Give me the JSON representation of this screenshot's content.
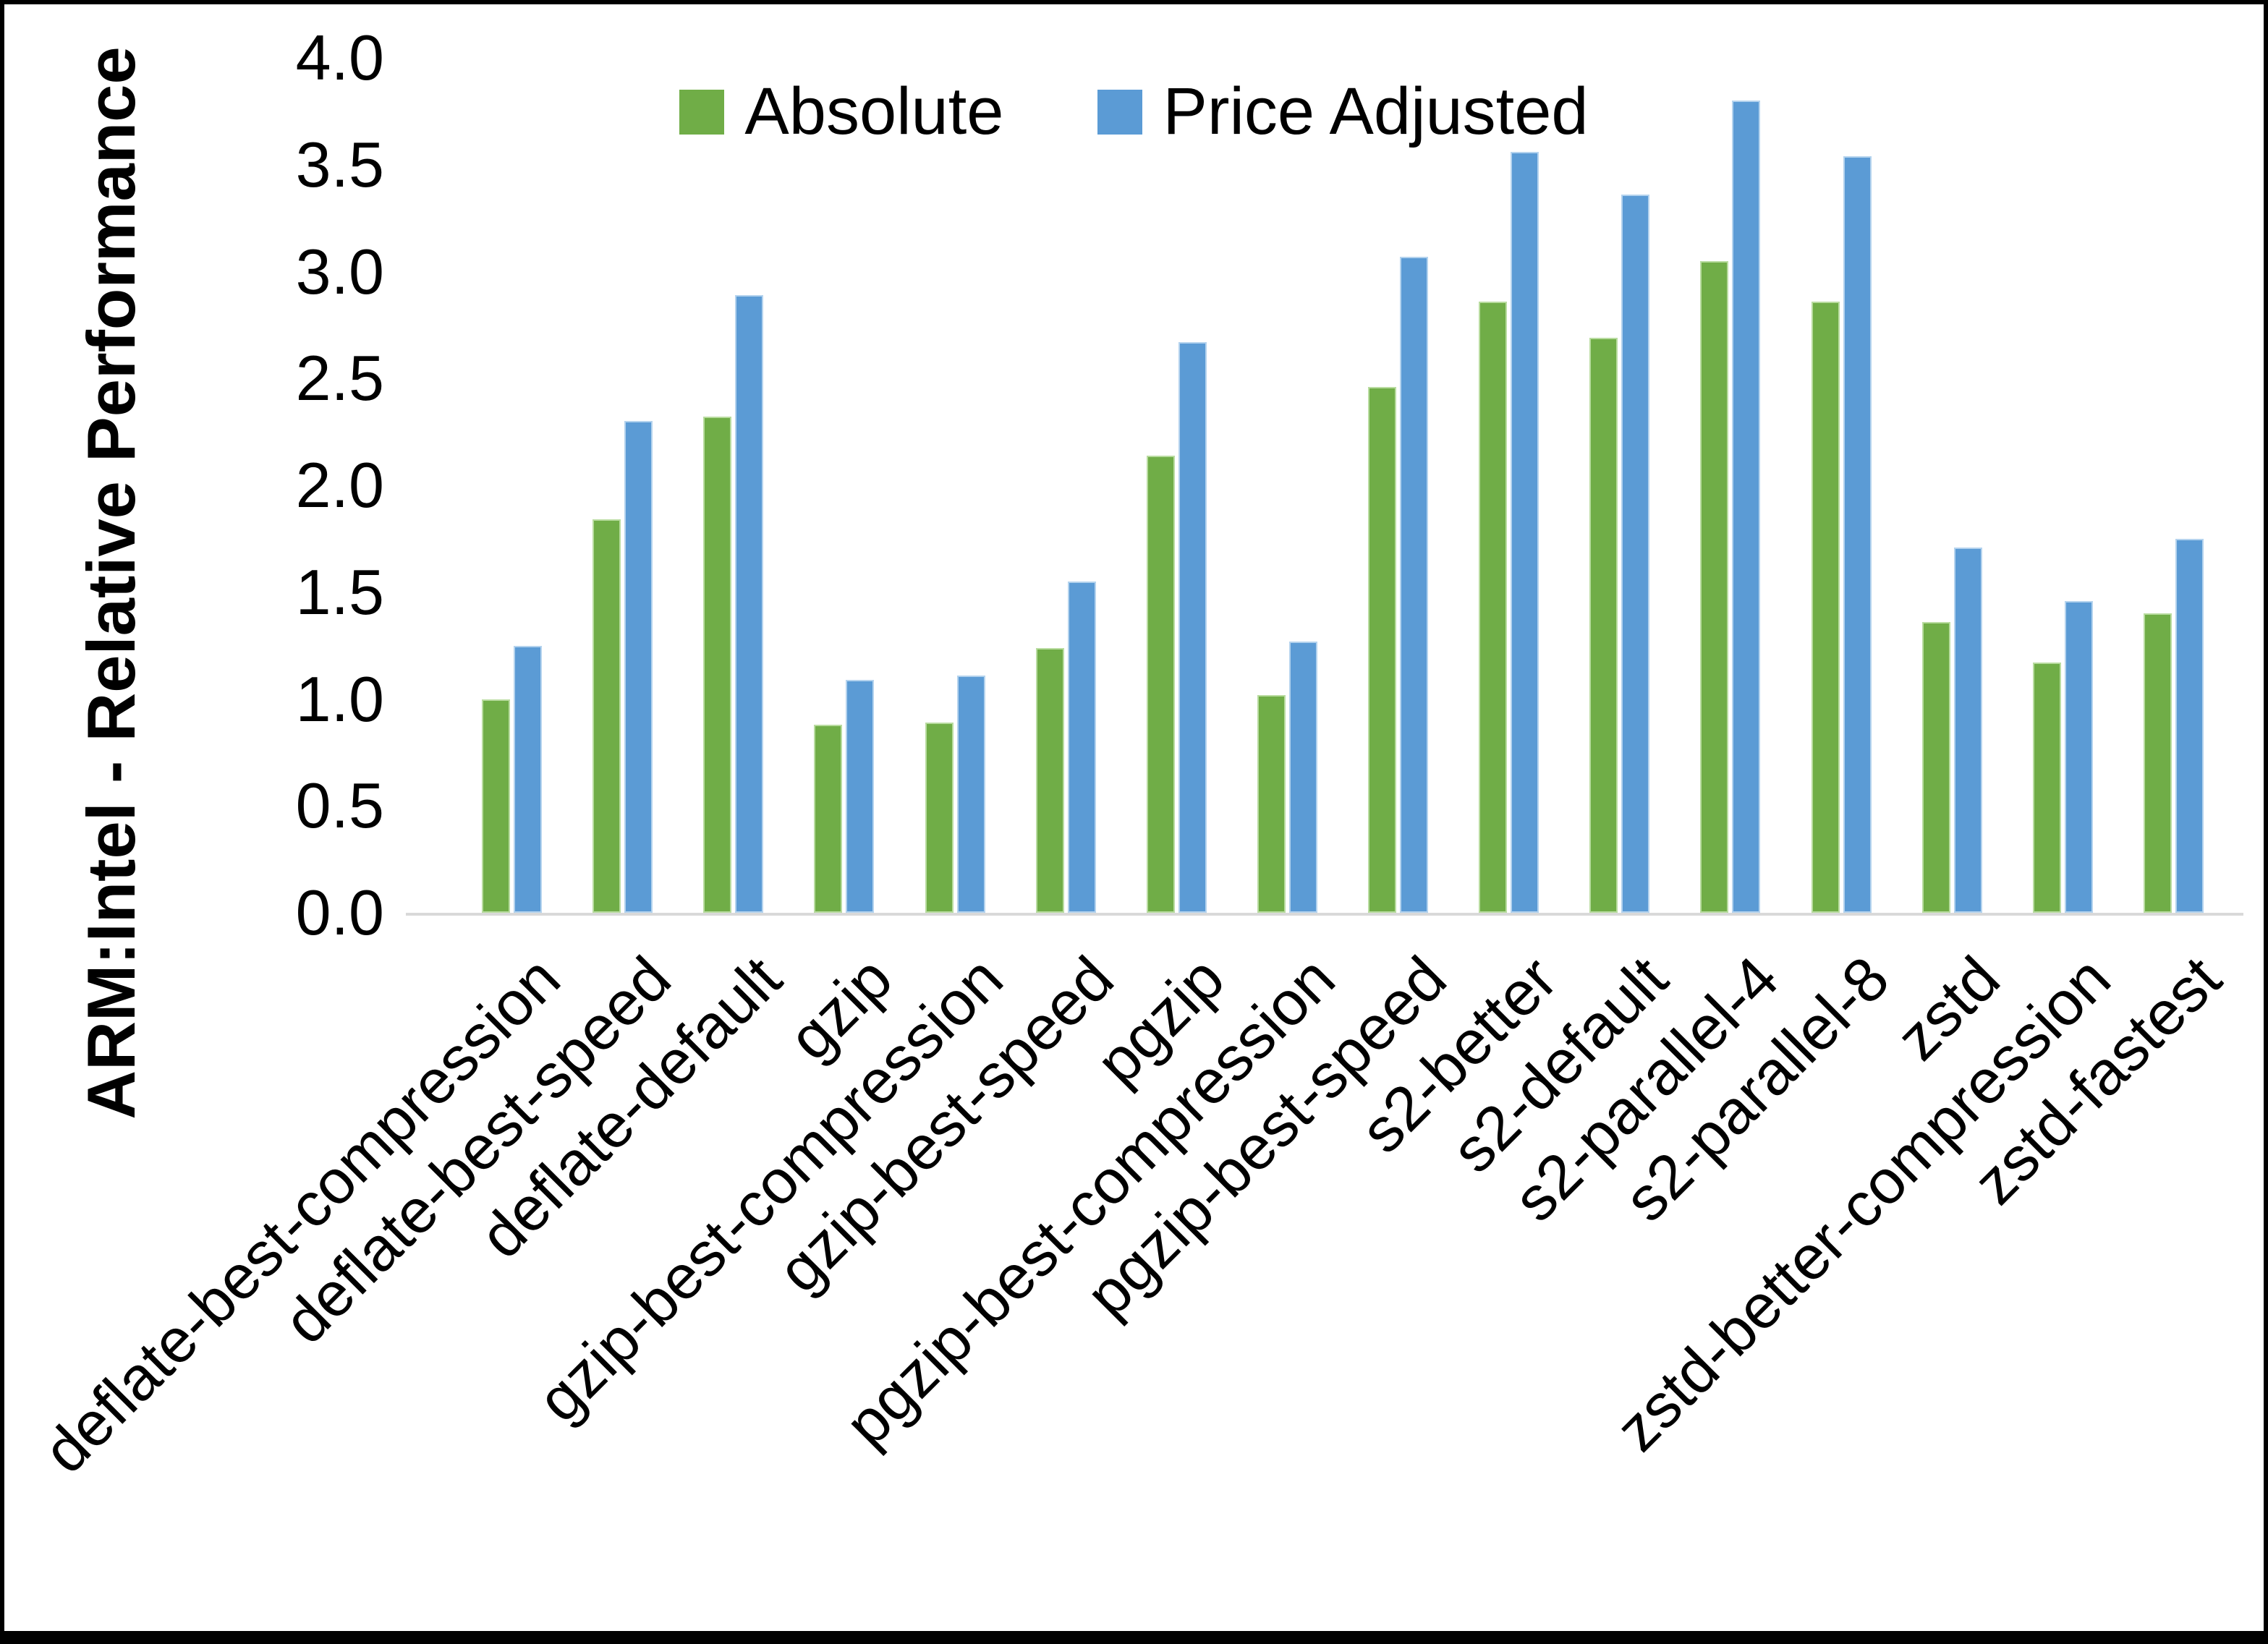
{
  "chart_data": {
    "type": "bar",
    "title": "",
    "ylabel": "ARM:Intel - Relative Performance",
    "xlabel": "",
    "ylim": [
      0,
      4
    ],
    "ytick_step": 0.5,
    "ytick_labels": [
      "0.0",
      "0.5",
      "1.0",
      "1.5",
      "2.0",
      "2.5",
      "3.0",
      "3.5",
      "4.0"
    ],
    "grid": false,
    "legend_position": "top-center",
    "categories": [
      "deflate-best-compression",
      "deflate-best-speed",
      "deflate-default",
      "gzip",
      "gzip-best-compression",
      "gzip-best-speed",
      "pgzip",
      "pgzip-best-compression",
      "pgzip-best-speed",
      "s2-better",
      "s2-default",
      "s2-parallel-4",
      "s2-parallel-8",
      "zstd",
      "zstd-better-compression",
      "zstd-fastest"
    ],
    "series": [
      {
        "name": "Absolute",
        "color": "#70AD47",
        "values": [
          1.0,
          1.84,
          2.32,
          0.88,
          0.89,
          1.24,
          2.14,
          1.02,
          2.46,
          2.86,
          2.69,
          3.05,
          2.86,
          1.36,
          1.17,
          1.4
        ]
      },
      {
        "name": "Price Adjusted",
        "color": "#5B9BD5",
        "values": [
          1.25,
          2.3,
          2.89,
          1.09,
          1.11,
          1.55,
          2.67,
          1.27,
          3.07,
          3.56,
          3.36,
          3.8,
          3.54,
          1.71,
          1.46,
          1.75
        ]
      }
    ]
  }
}
